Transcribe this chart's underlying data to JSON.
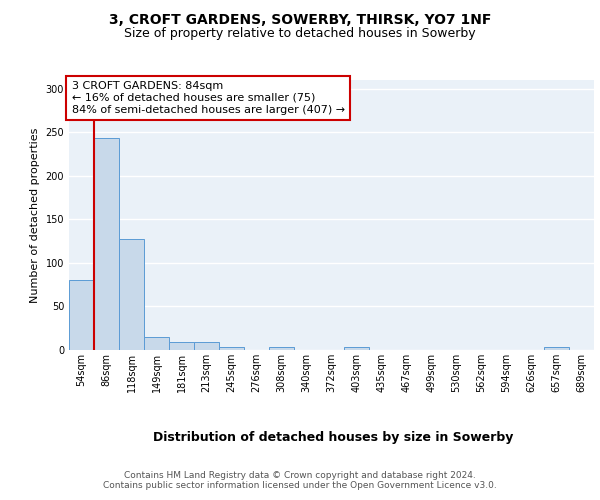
{
  "title1": "3, CROFT GARDENS, SOWERBY, THIRSK, YO7 1NF",
  "title2": "Size of property relative to detached houses in Sowerby",
  "xlabel": "Distribution of detached houses by size in Sowerby",
  "ylabel": "Number of detached properties",
  "categories": [
    "54sqm",
    "86sqm",
    "118sqm",
    "149sqm",
    "181sqm",
    "213sqm",
    "245sqm",
    "276sqm",
    "308sqm",
    "340sqm",
    "372sqm",
    "403sqm",
    "435sqm",
    "467sqm",
    "499sqm",
    "530sqm",
    "562sqm",
    "594sqm",
    "626sqm",
    "657sqm",
    "689sqm"
  ],
  "values": [
    80,
    243,
    128,
    15,
    9,
    9,
    3,
    0,
    3,
    0,
    0,
    3,
    0,
    0,
    0,
    0,
    0,
    0,
    0,
    3,
    0
  ],
  "bar_color": "#c8d9ea",
  "bar_edge_color": "#5b9bd5",
  "annotation_box_text": "3 CROFT GARDENS: 84sqm\n← 16% of detached houses are smaller (75)\n84% of semi-detached houses are larger (407) →",
  "annotation_box_edge_color": "#cc0000",
  "vline_color": "#cc0000",
  "footer_text": "Contains HM Land Registry data © Crown copyright and database right 2024.\nContains public sector information licensed under the Open Government Licence v3.0.",
  "ylim": [
    0,
    310
  ],
  "yticks": [
    0,
    50,
    100,
    150,
    200,
    250,
    300
  ],
  "plot_bg_color": "#eaf1f8",
  "fig_bg_color": "#ffffff",
  "title1_fontsize": 10,
  "title2_fontsize": 9,
  "ylabel_fontsize": 8,
  "xlabel_fontsize": 9,
  "tick_fontsize": 7,
  "footer_fontsize": 6.5,
  "annotation_fontsize": 8,
  "footer_color": "#555555"
}
